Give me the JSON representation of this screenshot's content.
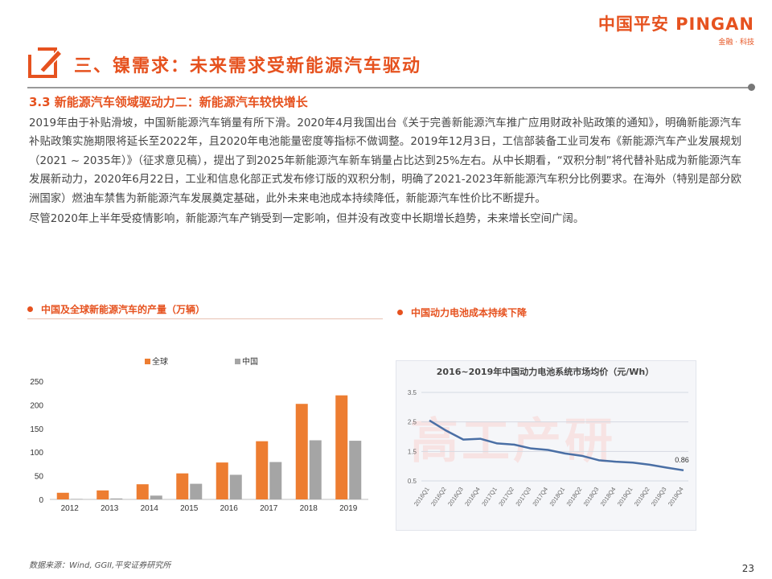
{
  "header": {
    "logo_main": "中国平安 PINGAN",
    "logo_sub": "金融 · 科技",
    "section_title": "三、镍需求：未来需求受新能源汽车驱动",
    "subtitle": "3.3 新能源汽车领域驱动力二：新能源汽车较快增长"
  },
  "body": {
    "paragraph1": "2019年由于补贴滑坡，中国新能源汽车销量有所下滑。2020年4月我国出台《关于完善新能源汽车推广应用财政补贴政策的通知》，明确新能源汽车补贴政策实施期限将延长至2022年，且2020年电池能量密度等指标不做调整。2019年12月3日，工信部装备工业司发布《新能源汽车产业发展规划（2021 ~ 2035年）》（征求意见稿），提出了到2025年新能源汽车新车销量占比达到25%左右。从中长期看，“双积分制”将代替补贴成为新能源汽车发展新动力，2020年6月22日，工业和信息化部正式发布修订版的双积分制，明确了2021-2023年新能源汽车积分比例要求。在海外（特别是部分欧洲国家）燃油车禁售为新能源汽车发展奠定基础，此外未来电池成本持续降低，新能源汽车性价比不断提升。",
    "paragraph2": "尽管2020年上半年受疫情影响，新能源汽车产销受到一定影响，但并没有改变中长期增长趋势，未来增长空间广阔。"
  },
  "captions": {
    "left": "中国及全球新能源汽车的产量（万辆）",
    "right": "中国动力电池成本持续下降"
  },
  "colors": {
    "accent": "#e6521f",
    "global_bar": "#ed7d31",
    "china_bar": "#a5a5a5",
    "battery_line": "#4a6fa5"
  },
  "chart_data": [
    {
      "type": "bar",
      "categories": [
        "2012",
        "2013",
        "2014",
        "2015",
        "2016",
        "2017",
        "2018",
        "2019"
      ],
      "series": [
        {
          "name": "全球",
          "values": [
            14,
            19,
            32,
            55,
            78,
            123,
            202,
            220
          ]
        },
        {
          "name": "中国",
          "values": [
            1,
            2,
            8,
            33,
            52,
            79,
            125,
            124
          ]
        }
      ],
      "ylim": [
        0,
        250
      ],
      "yticks": [
        0,
        50,
        100,
        150,
        200,
        250
      ],
      "legend": "top-center",
      "grid": false
    },
    {
      "type": "line",
      "title": "2016~2019年中国动力电池系统市场均价（元/Wh）",
      "categories": [
        "2016Q1",
        "2016Q2",
        "2016Q3",
        "2016Q4",
        "2017Q1",
        "2017Q2",
        "2017Q3",
        "2017Q4",
        "2018Q1",
        "2018Q2",
        "2018Q3",
        "2018Q4",
        "2019Q1",
        "2019Q2",
        "2019Q3",
        "2019Q4"
      ],
      "series": [
        {
          "values": [
            2.55,
            2.2,
            1.9,
            1.93,
            1.77,
            1.73,
            1.6,
            1.55,
            1.43,
            1.35,
            1.2,
            1.15,
            1.12,
            1.05,
            0.95,
            0.86
          ]
        }
      ],
      "ylim": [
        0.5,
        3.5
      ],
      "yticks": [
        "0.5",
        "1.5",
        "2.5",
        "3.5"
      ],
      "annotation": "0.86",
      "grid": true,
      "watermark": "高工产研"
    }
  ],
  "footer": {
    "source": "数据来源：Wind, GGII,平安证券研究所",
    "page": "23"
  }
}
